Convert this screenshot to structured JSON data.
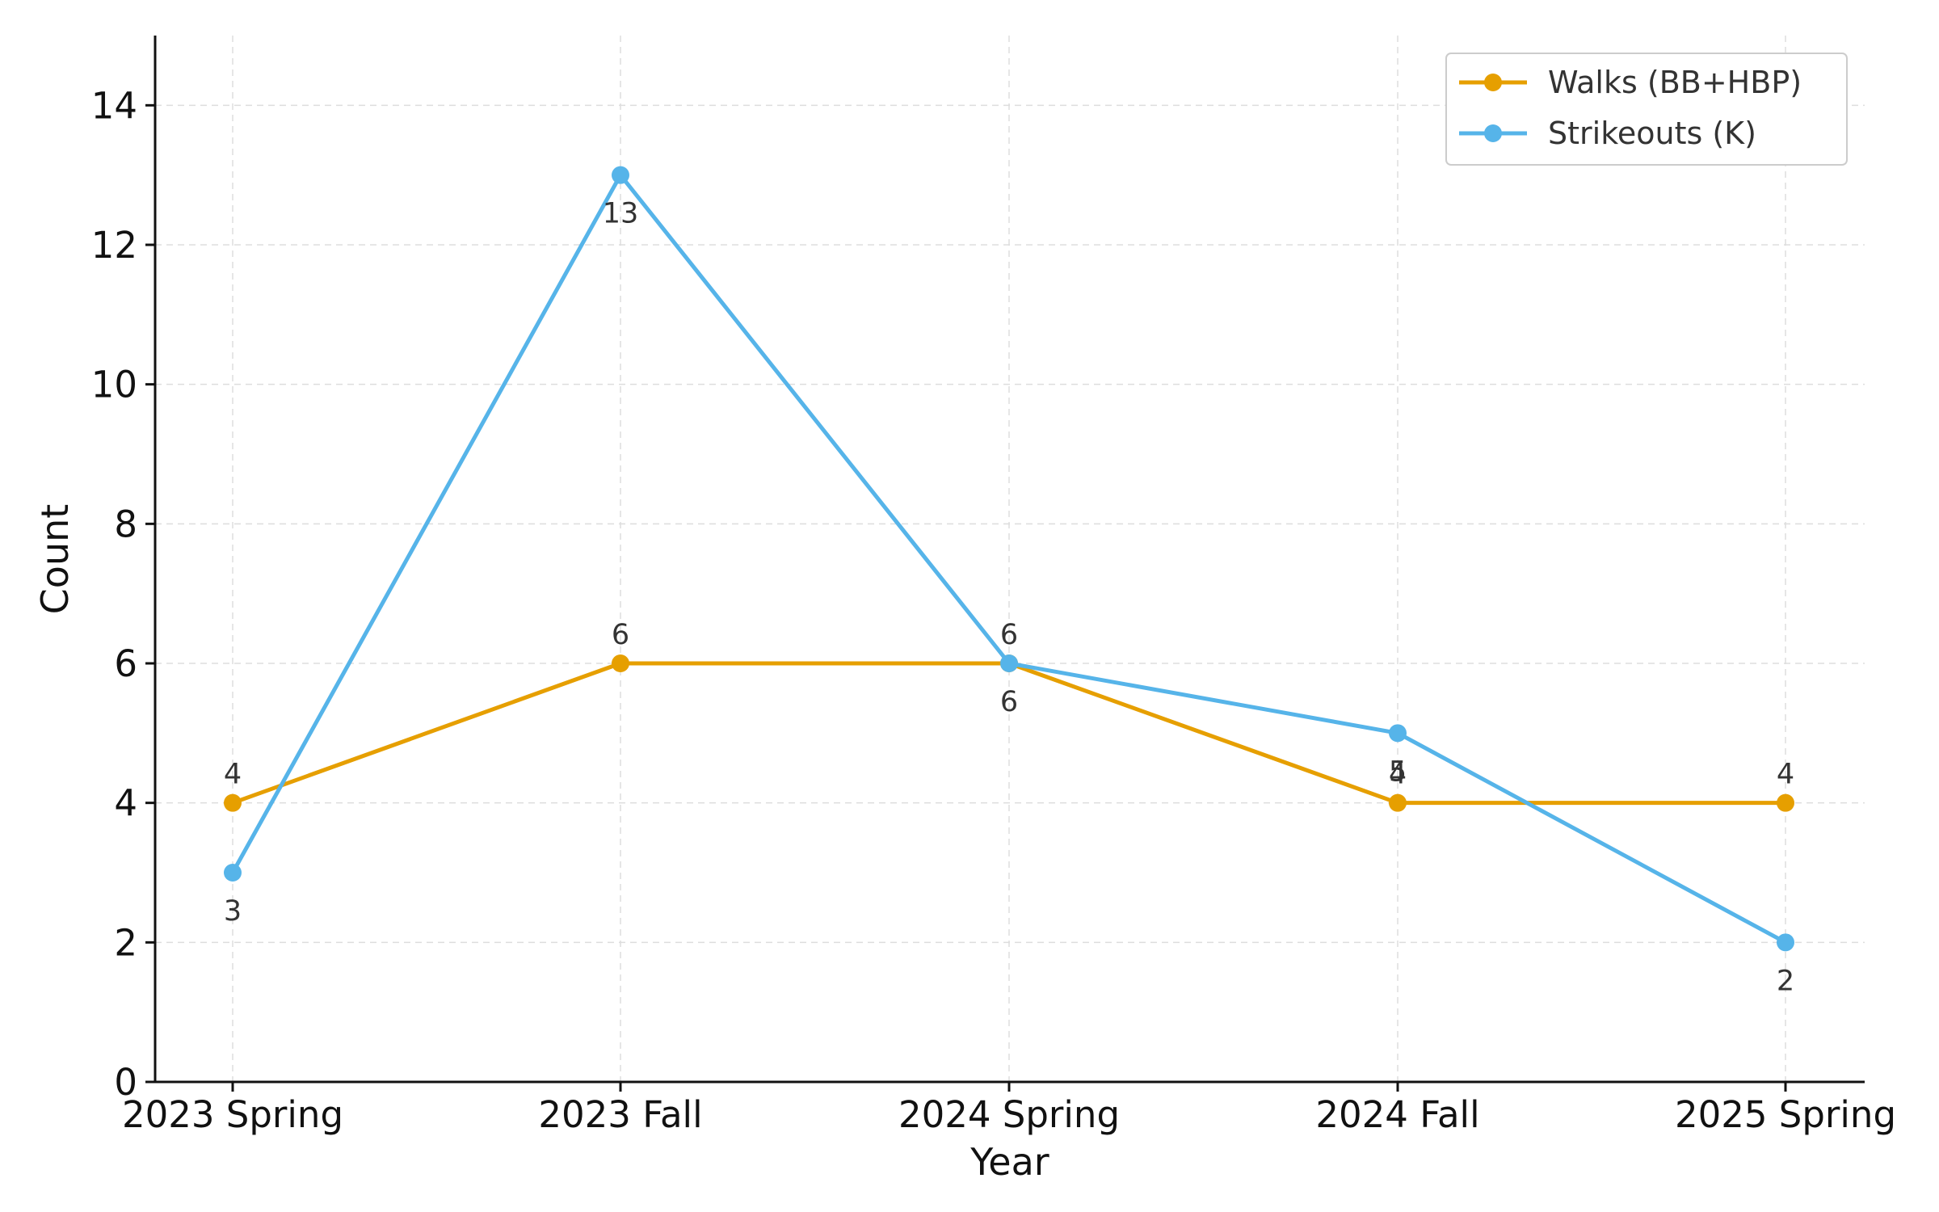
{
  "chart_data": {
    "type": "line",
    "title": "",
    "xlabel": "Year",
    "ylabel": "Count",
    "categories": [
      "2023 Spring",
      "2023 Fall",
      "2024 Spring",
      "2024 Fall",
      "2025 Spring"
    ],
    "ylim": [
      0,
      15
    ],
    "yticks": [
      0,
      2,
      4,
      6,
      8,
      10,
      12,
      14
    ],
    "grid": true,
    "legend_position": "top-right",
    "series": [
      {
        "name": "Walks (BB+HBP)",
        "color": "#E69F00",
        "values": [
          4,
          6,
          6,
          4,
          4
        ],
        "labels": [
          "4",
          "6",
          "6",
          "4",
          "4"
        ],
        "label_position": "above"
      },
      {
        "name": "Strikeouts (K)",
        "color": "#56B4E9",
        "values": [
          3,
          13,
          6,
          5,
          2
        ],
        "labels": [
          "3",
          "13",
          "6",
          "5",
          "2"
        ],
        "label_position": "below"
      }
    ]
  }
}
